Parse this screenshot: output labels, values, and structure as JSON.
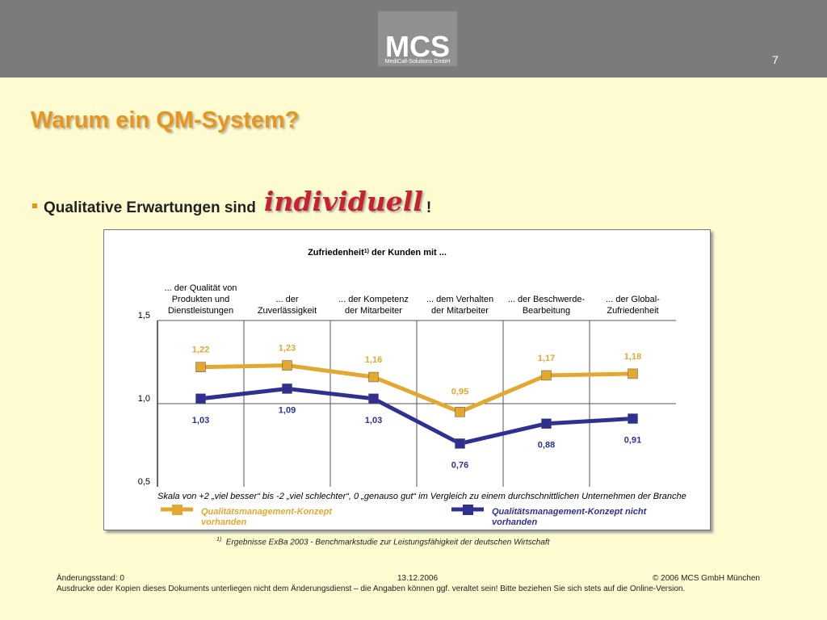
{
  "header": {
    "logo_main": "MCS",
    "logo_sub": "MediCall-Solutions GmbH",
    "page_number": "7"
  },
  "title": "Warum ein QM-System?",
  "bullet": {
    "text": "Qualitative Erwartungen sind",
    "emph": "individuell",
    "suffix": "!"
  },
  "chart_data": {
    "type": "line",
    "title": "Zufriedenheit",
    "title_sup": "1)",
    "title_rest": " der Kunden mit ...",
    "categories": [
      [
        "... der Qualität von",
        "Produkten und",
        "Dienstleistungen"
      ],
      [
        "... der",
        "Zuverlässigkeit"
      ],
      [
        "... der Kompetenz",
        "der Mitarbeiter"
      ],
      [
        "... dem Verhalten",
        "der Mitarbeiter"
      ],
      [
        "... der Beschwerde-",
        "Bearbeitung"
      ],
      [
        "... der Global-",
        "Zufriedenheit"
      ]
    ],
    "ylim": [
      0.5,
      1.5
    ],
    "yticks": [
      "0,5",
      "1,0",
      "1,5"
    ],
    "series": [
      {
        "name": "Qualitätsmanagement-Konzept vorhanden",
        "values": [
          1.22,
          1.23,
          1.16,
          0.95,
          1.17,
          1.18
        ],
        "labels": [
          "1,22",
          "1,23",
          "1,16",
          "0,95",
          "1,17",
          "1,18"
        ],
        "color": "#e2a82f"
      },
      {
        "name": "Qualitätsmanagement-Konzept nicht vorhanden",
        "values": [
          1.03,
          1.09,
          1.03,
          0.76,
          0.88,
          0.91
        ],
        "labels": [
          "1,03",
          "1,09",
          "1,03",
          "0,76",
          "0,88",
          "0,91"
        ],
        "color": "#2e3192"
      }
    ],
    "scale_note": "Skala von +2 „viel besser“ bis  -2 „viel schlechter“, 0 „genauso gut“ im Vergleich zu einem durchschnittlichen Unternehmen der Branche",
    "legend": [
      {
        "lines": [
          "Qualitätsmanagement-Konzept",
          "vorhanden"
        ]
      },
      {
        "lines": [
          "Qualitätsmanagement-Konzept nicht",
          "vorhanden"
        ]
      }
    ]
  },
  "footnote": {
    "marker": "1)",
    "text": "Ergebnisse ExBa 2003 - Benchmarkstudie zur Leistungsfähigkeit der deutschen Wirtschaft"
  },
  "footer": {
    "status": "Änderungsstand: 0",
    "date": "13.12.2006",
    "copyright": "© 2006 MCS GmbH München",
    "disclaimer": "Ausdrucke oder Kopien dieses Dokuments unterliegen nicht dem Änderungsdienst – die Angaben können ggf. veraltet sein! Bitte beziehen Sie sich stets auf die Online-Version."
  }
}
